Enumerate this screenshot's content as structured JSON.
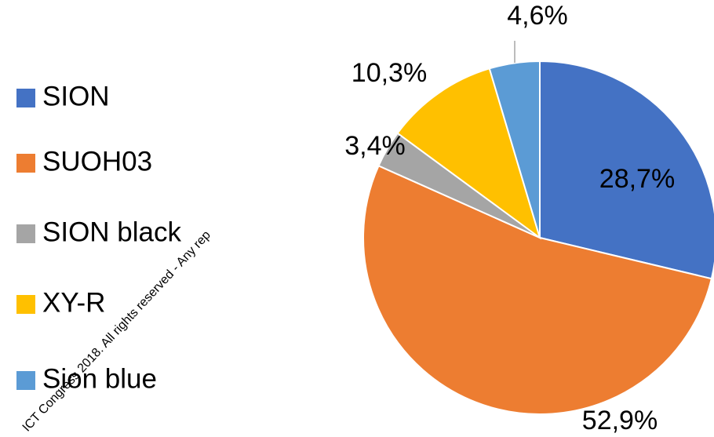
{
  "chart_data": {
    "type": "pie",
    "categories": [
      "SION",
      "SUOH03",
      "SION black",
      "XY-R",
      "Sion blue"
    ],
    "values": [
      28.7,
      52.9,
      3.4,
      10.3,
      4.6
    ],
    "value_labels": [
      "28,7%",
      "52,9%",
      "3,4%",
      "10,3%",
      "4,6%"
    ],
    "colors": [
      "#4472c4",
      "#ed7d31",
      "#a5a5a5",
      "#ffc000",
      "#5b9bd5"
    ],
    "legend": "left",
    "watermark": "ICT Congress 2018. All rights reserved - Any rep"
  }
}
